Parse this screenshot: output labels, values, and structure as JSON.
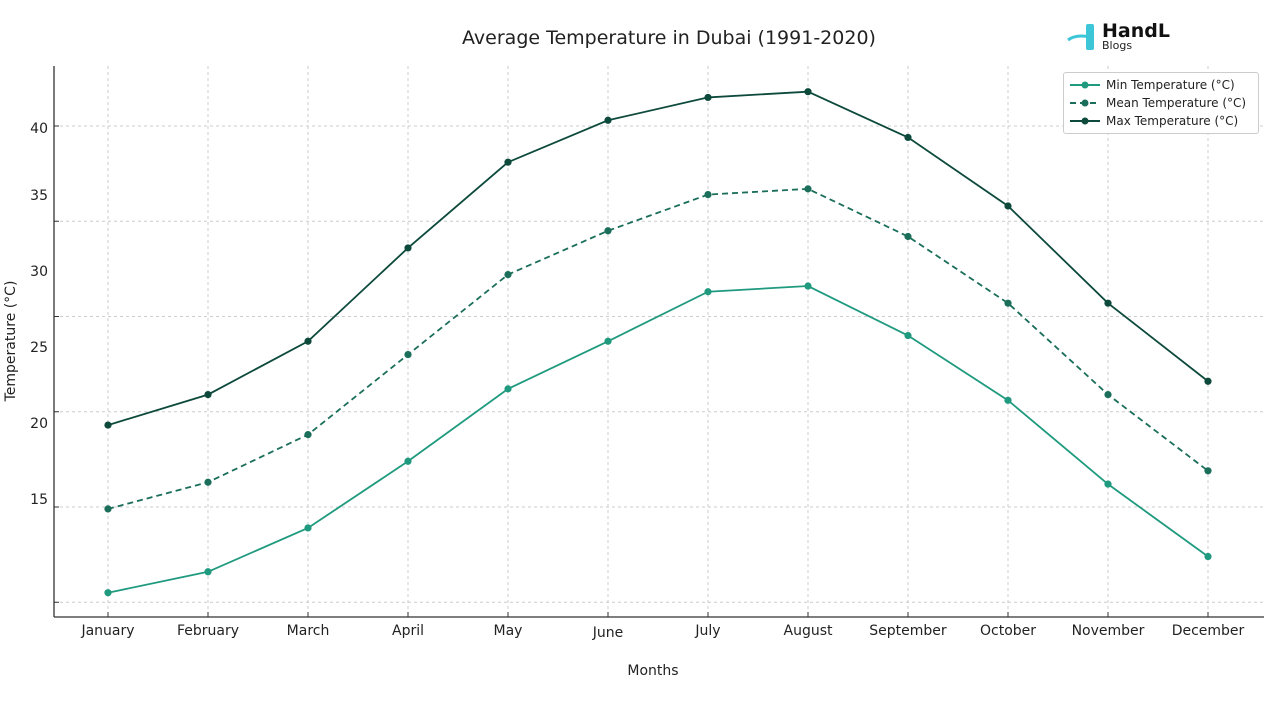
{
  "chart_data": {
    "type": "line",
    "title": "Average Temperature in Dubai (1991-2020)",
    "xlabel": "Months",
    "ylabel": "Temperature (°C)",
    "categories": [
      "January",
      "February",
      "March",
      "April",
      "May",
      "June",
      "July",
      "August",
      "September",
      "October",
      "November",
      "December"
    ],
    "yticks": [
      "40",
      "35",
      "30",
      "25",
      "20",
      "15"
    ],
    "ylim": [
      13.8,
      43.2
    ],
    "grid": true,
    "legend_position": "top-right",
    "series": [
      {
        "name": "Min Temperature (°C)",
        "color": "#1f9a7f",
        "style": "solid",
        "values": [
          15.5,
          16.6,
          18.9,
          22.4,
          26.2,
          28.7,
          31.3,
          31.6,
          29.0,
          25.6,
          21.2,
          17.4
        ]
      },
      {
        "name": "Mean Temperature (°C)",
        "color": "#1a6e5a",
        "style": "dashed",
        "values": [
          19.9,
          21.3,
          23.8,
          28.0,
          32.2,
          34.5,
          36.4,
          36.7,
          34.2,
          30.7,
          25.9,
          21.9
        ]
      },
      {
        "name": "Max Temperature (°C)",
        "color": "#0d4a3c",
        "style": "solid",
        "values": [
          24.3,
          25.9,
          28.7,
          33.6,
          38.1,
          40.3,
          41.5,
          41.8,
          39.4,
          35.8,
          30.7,
          26.6
        ]
      }
    ]
  },
  "logo": {
    "name": "HandL",
    "sub": "Blogs"
  }
}
